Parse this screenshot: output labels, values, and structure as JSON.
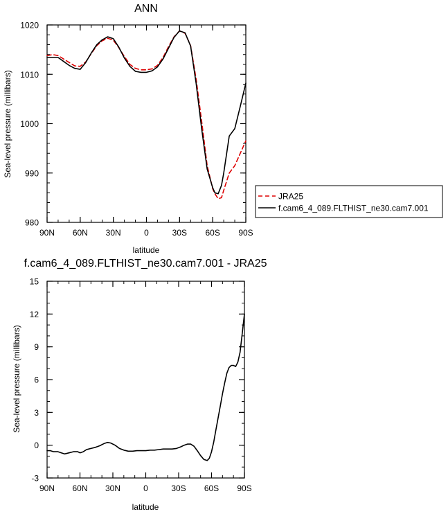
{
  "chart_data": [
    {
      "type": "line",
      "title": "ANN",
      "xlabel": "latitude",
      "ylabel": "Sea-level pressure (millibars)",
      "xlim": [
        90,
        -90
      ],
      "ylim": [
        980,
        1020
      ],
      "x_ticks": [
        90,
        60,
        30,
        0,
        -30,
        -60,
        -90
      ],
      "x_tick_labels": [
        "90N",
        "60N",
        "30N",
        "0",
        "30S",
        "60S",
        "90S"
      ],
      "y_ticks": [
        980,
        990,
        1000,
        1010,
        1020
      ],
      "y_tick_labels": [
        "980",
        "990",
        "1000",
        "1010",
        "1020"
      ],
      "legend_position": "right",
      "series": [
        {
          "name": "JRA25",
          "color": "#dd0000",
          "dash": "dashed",
          "x": [
            90,
            85,
            80,
            75,
            70,
            65,
            60,
            55,
            50,
            45,
            40,
            35,
            30,
            25,
            20,
            15,
            10,
            5,
            0,
            -5,
            -10,
            -15,
            -20,
            -25,
            -30,
            -35,
            -40,
            -45,
            -50,
            -55,
            -60,
            -62,
            -65,
            -68,
            -70,
            -75,
            -80,
            -85,
            -90
          ],
          "y": [
            1013.8,
            1014.0,
            1013.8,
            1013.1,
            1012.4,
            1011.7,
            1011.6,
            1012.5,
            1014.2,
            1015.8,
            1016.8,
            1017.3,
            1016.9,
            1015.4,
            1013.6,
            1012.0,
            1011.2,
            1010.9,
            1010.9,
            1011.1,
            1011.8,
            1013.4,
            1015.6,
            1017.6,
            1018.8,
            1018.3,
            1015.8,
            1009.0,
            1000.5,
            991.5,
            986.8,
            985.8,
            984.8,
            985.0,
            986.5,
            990.0,
            991.5,
            994.0,
            996.5
          ]
        },
        {
          "name": "f.cam6_4_089.FLTHIST_ne30.cam7.001",
          "color": "#000000",
          "dash": "solid",
          "x": [
            90,
            85,
            80,
            75,
            70,
            65,
            60,
            55,
            50,
            45,
            40,
            35,
            30,
            25,
            20,
            15,
            10,
            5,
            0,
            -5,
            -10,
            -15,
            -20,
            -25,
            -30,
            -35,
            -40,
            -45,
            -50,
            -55,
            -60,
            -62,
            -65,
            -68,
            -70,
            -75,
            -80,
            -85,
            -90
          ],
          "y": [
            1013.4,
            1013.4,
            1013.4,
            1012.6,
            1011.8,
            1011.2,
            1011.0,
            1012.4,
            1014.3,
            1016.0,
            1017.0,
            1017.6,
            1017.2,
            1015.5,
            1013.3,
            1011.6,
            1010.6,
            1010.4,
            1010.4,
            1010.7,
            1011.5,
            1013.1,
            1015.3,
            1017.5,
            1018.8,
            1018.4,
            1015.7,
            1008.1,
            999.0,
            990.8,
            987.0,
            986.0,
            985.8,
            987.5,
            990.0,
            997.5,
            999.0,
            1003.5,
            1008.2
          ]
        }
      ]
    },
    {
      "type": "line",
      "title": "f.cam6_4_089.FLTHIST_ne30.cam7.001 - JRA25",
      "xlabel": "latitude",
      "ylabel": "Sea-level pressure (millibars)",
      "xlim": [
        90,
        -90
      ],
      "ylim": [
        -3,
        15
      ],
      "x_ticks": [
        90,
        60,
        30,
        0,
        -30,
        -60,
        -90
      ],
      "x_tick_labels": [
        "90N",
        "60N",
        "30N",
        "0",
        "30S",
        "60S",
        "90S"
      ],
      "y_ticks": [
        -3,
        0,
        3,
        6,
        9,
        12,
        15
      ],
      "y_tick_labels": [
        "-3",
        "0",
        "3",
        "6",
        "9",
        "12",
        "15"
      ],
      "series": [
        {
          "color": "#000000",
          "dash": "solid",
          "x": [
            90,
            87,
            84,
            80,
            77,
            74,
            70,
            66,
            62,
            60,
            57,
            54,
            50,
            46,
            42,
            38,
            35,
            32,
            28,
            24,
            20,
            16,
            12,
            8,
            4,
            0,
            -4,
            -8,
            -12,
            -16,
            -20,
            -24,
            -28,
            -32,
            -35,
            -38,
            -41,
            -44,
            -47,
            -50,
            -53,
            -56,
            -58,
            -60,
            -62,
            -64,
            -66,
            -68,
            -70,
            -72,
            -74,
            -76,
            -78,
            -80,
            -82,
            -84,
            -86,
            -88,
            -90
          ],
          "y": [
            -0.5,
            -0.5,
            -0.6,
            -0.6,
            -0.7,
            -0.8,
            -0.7,
            -0.6,
            -0.6,
            -0.7,
            -0.6,
            -0.4,
            -0.3,
            -0.2,
            -0.05,
            0.15,
            0.25,
            0.2,
            0.0,
            -0.3,
            -0.45,
            -0.55,
            -0.55,
            -0.5,
            -0.5,
            -0.5,
            -0.45,
            -0.45,
            -0.4,
            -0.35,
            -0.35,
            -0.35,
            -0.3,
            -0.15,
            0.0,
            0.1,
            0.1,
            -0.1,
            -0.5,
            -0.95,
            -1.3,
            -1.4,
            -1.2,
            -0.6,
            0.3,
            1.4,
            2.5,
            3.6,
            4.7,
            5.7,
            6.6,
            7.1,
            7.3,
            7.3,
            7.2,
            7.6,
            8.5,
            10.2,
            12.0
          ]
        }
      ]
    }
  ]
}
